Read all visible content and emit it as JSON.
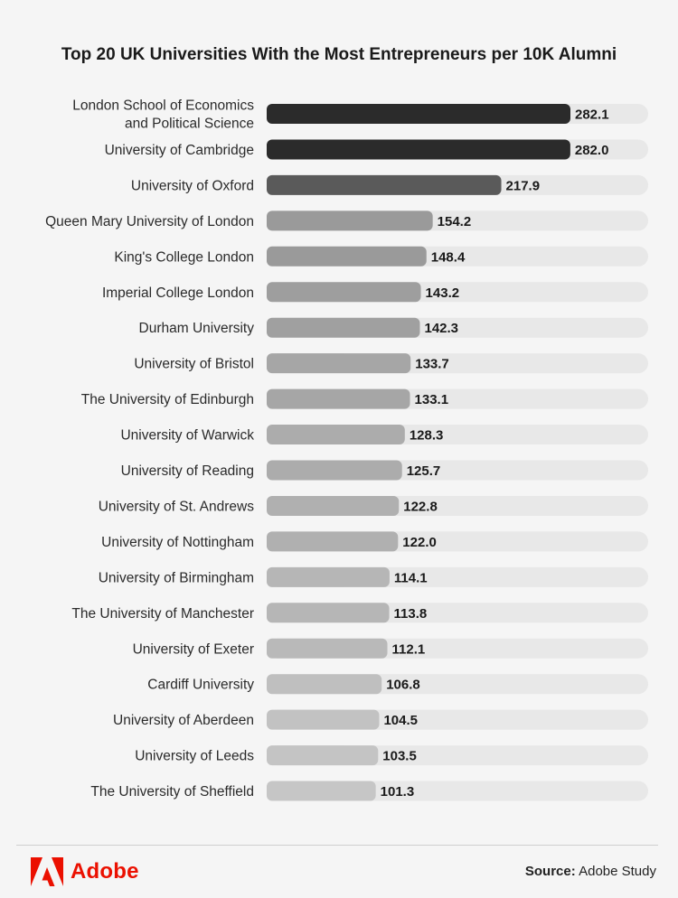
{
  "chart_data": {
    "type": "bar",
    "orientation": "horizontal",
    "title": "Top 20 UK Universities With the Most Entrepreneurs per 10K Alumni",
    "categories": [
      [
        "London School of Economics",
        "and Political Science"
      ],
      [
        "University of Cambridge"
      ],
      [
        "University of Oxford"
      ],
      [
        "Queen Mary University of London"
      ],
      [
        "King's College London"
      ],
      [
        "Imperial College London"
      ],
      [
        "Durham University"
      ],
      [
        "University of Bristol"
      ],
      [
        "The University of Edinburgh"
      ],
      [
        "University of Warwick"
      ],
      [
        "University of Reading"
      ],
      [
        "University of St. Andrews"
      ],
      [
        "University of Nottingham"
      ],
      [
        "University of Birmingham"
      ],
      [
        "The University of Manchester"
      ],
      [
        "University of Exeter"
      ],
      [
        "Cardiff University"
      ],
      [
        "University of Aberdeen"
      ],
      [
        "University of Leeds"
      ],
      [
        "The University of Sheffield"
      ]
    ],
    "values": [
      282.1,
      282.0,
      217.9,
      154.2,
      148.4,
      143.2,
      142.3,
      133.7,
      133.1,
      128.3,
      125.7,
      122.8,
      122.0,
      114.1,
      113.8,
      112.1,
      106.8,
      104.5,
      103.5,
      101.3
    ],
    "value_labels": [
      "282.1",
      "282.0",
      "217.9",
      "154.2",
      "148.4",
      "143.2",
      "142.3",
      "133.7",
      "133.1",
      "128.3",
      "125.7",
      "122.8",
      "122.0",
      "114.1",
      "113.8",
      "112.1",
      "106.8",
      "104.5",
      "103.5",
      "101.3"
    ],
    "bar_colors": [
      "#2b2b2b",
      "#2b2b2b",
      "#5a5a5a",
      "#9a9a9a",
      "#9a9a9a",
      "#9e9e9e",
      "#a0a0a0",
      "#a6a6a6",
      "#a6a6a6",
      "#acacac",
      "#acacac",
      "#b0b0b0",
      "#b0b0b0",
      "#b6b6b6",
      "#b6b6b6",
      "#b9b9b9",
      "#bfbfbf",
      "#c2c2c2",
      "#c4c4c4",
      "#c6c6c6"
    ],
    "track_color": "#e8e8e8",
    "xlim": [
      0,
      282.1
    ],
    "grid": false,
    "legend": "none"
  },
  "footer": {
    "brand": "Adobe",
    "brand_color": "#eb1000",
    "logo_icon": "adobe-logo-icon",
    "source_label": "Source:",
    "source_text": "Adobe Study"
  }
}
